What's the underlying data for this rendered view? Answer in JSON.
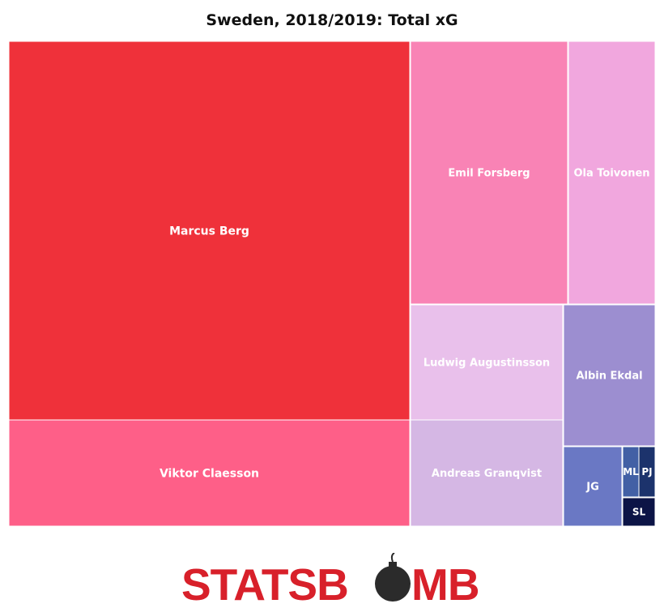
{
  "chart_data": {
    "type": "treemap",
    "title": "Sweden, 2018/2019: Total xG",
    "cells": [
      {
        "label": "Marcus Berg",
        "color": "#ef313a"
      },
      {
        "label": "Viktor Claesson",
        "color": "#fe5f88"
      },
      {
        "label": "Emil Forsberg",
        "color": "#f983b5"
      },
      {
        "label": "Ola Toivonen",
        "color": "#f1a7de"
      },
      {
        "label": "Ludwig Augustinsson",
        "color": "#e9c0eb"
      },
      {
        "label": "Andreas Granqvist",
        "color": "#d5b7e4"
      },
      {
        "label": "Albin Ekdal",
        "color": "#9c8ed0"
      },
      {
        "label": "JG",
        "color": "#6a78c4"
      },
      {
        "label": "ML",
        "color": "#4260a5"
      },
      {
        "label": "PJ",
        "color": "#1c336c"
      },
      {
        "label": "SL",
        "color": "#0c1446"
      }
    ]
  },
  "logo": {
    "text": "STATSBOMB",
    "color": "#d8202a"
  }
}
